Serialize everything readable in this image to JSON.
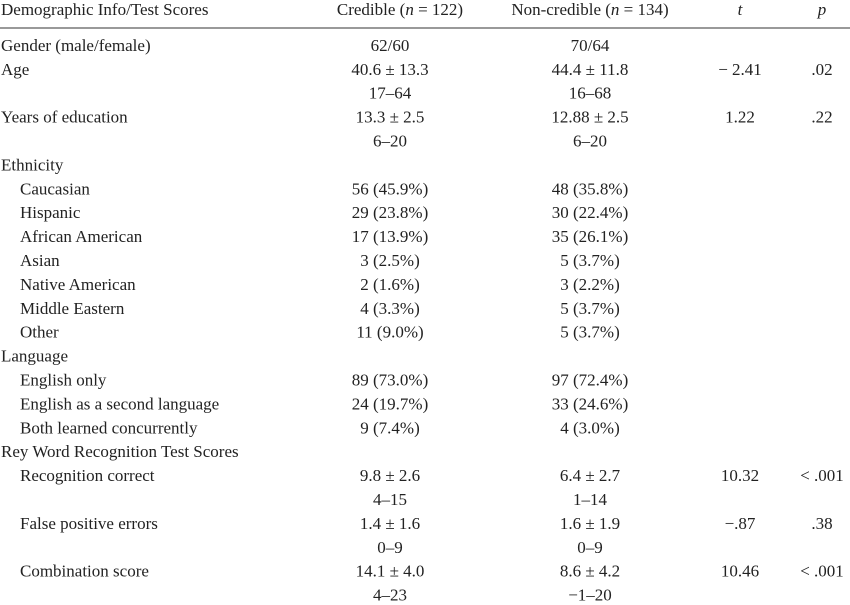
{
  "header": {
    "label": "Demographic Info/Test Scores",
    "credible": {
      "before": "Credible (",
      "italic": "n",
      "after": " = 122)"
    },
    "noncredible": {
      "before": "Non-credible (",
      "italic": "n",
      "after": " = 134)"
    },
    "t": "t",
    "p": "p"
  },
  "rows": [
    {
      "label": "Gender (male/female)",
      "credible": [
        "62/60"
      ],
      "noncredible": [
        "70/64"
      ]
    },
    {
      "label": "Age",
      "credible": [
        "40.6 ± 13.3",
        "17–64"
      ],
      "noncredible": [
        "44.4 ± 11.8",
        "16–68"
      ],
      "t": "− 2.41",
      "p": ".02"
    },
    {
      "label": "Years of education",
      "credible": [
        "13.3 ± 2.5",
        "6–20"
      ],
      "noncredible": [
        "12.88 ± 2.5",
        "6–20"
      ],
      "t": "1.22",
      "p": ".22"
    },
    {
      "label": "Ethnicity"
    },
    {
      "label": "Caucasian",
      "indent": true,
      "credible": [
        "56 (45.9%)"
      ],
      "noncredible": [
        "48 (35.8%)"
      ]
    },
    {
      "label": "Hispanic",
      "indent": true,
      "credible": [
        "29 (23.8%)"
      ],
      "noncredible": [
        "30 (22.4%)"
      ]
    },
    {
      "label": "African American",
      "indent": true,
      "credible": [
        "17 (13.9%)"
      ],
      "noncredible": [
        "35 (26.1%)"
      ]
    },
    {
      "label": "Asian",
      "indent": true,
      "credible": [
        "3 (2.5%)"
      ],
      "noncredible": [
        "5 (3.7%)"
      ]
    },
    {
      "label": "Native American",
      "indent": true,
      "credible": [
        "2 (1.6%)"
      ],
      "noncredible": [
        "3 (2.2%)"
      ]
    },
    {
      "label": "Middle Eastern",
      "indent": true,
      "credible": [
        "4 (3.3%)"
      ],
      "noncredible": [
        "5 (3.7%)"
      ]
    },
    {
      "label": "Other",
      "indent": true,
      "credible": [
        "11 (9.0%)"
      ],
      "noncredible": [
        "5 (3.7%)"
      ]
    },
    {
      "label": "Language"
    },
    {
      "label": "English only",
      "indent": true,
      "credible": [
        "89 (73.0%)"
      ],
      "noncredible": [
        "97 (72.4%)"
      ]
    },
    {
      "label": "English as a second language",
      "indent": true,
      "credible": [
        "24 (19.7%)"
      ],
      "noncredible": [
        "33 (24.6%)"
      ]
    },
    {
      "label": "Both learned concurrently",
      "indent": true,
      "credible": [
        "9 (7.4%)"
      ],
      "noncredible": [
        "4 (3.0%)"
      ]
    },
    {
      "label": "Rey Word Recognition Test Scores"
    },
    {
      "label": "Recognition correct",
      "indent": true,
      "credible": [
        "9.8 ± 2.6",
        "4–15"
      ],
      "noncredible": [
        "6.4 ± 2.7",
        "1–14"
      ],
      "t": "10.32",
      "p": "< .001"
    },
    {
      "label": "False positive errors",
      "indent": true,
      "credible": [
        "1.4 ± 1.6",
        "0–9"
      ],
      "noncredible": [
        "1.6 ± 1.9",
        "0–9"
      ],
      "t": "−.87",
      "p": ".38"
    },
    {
      "label": "Combination score",
      "indent": true,
      "credible": [
        "14.1 ± 4.0",
        "4–23"
      ],
      "noncredible": [
        "8.6 ± 4.2",
        "−1–20"
      ],
      "t": "10.46",
      "p": "< .001"
    }
  ]
}
